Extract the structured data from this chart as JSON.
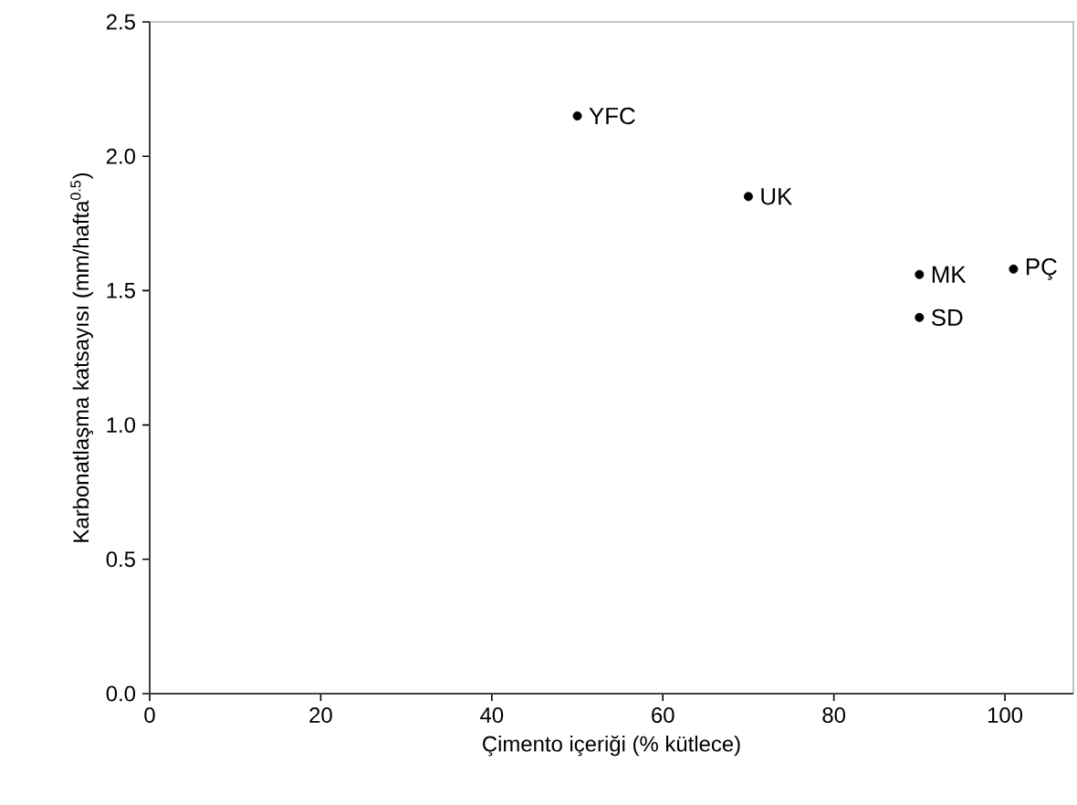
{
  "chart_data": {
    "type": "scatter",
    "xlabel": "Çimento içeriği (% kütlece)",
    "ylabel": "Karbonatlaşma katsayısı (mm/hafta$^{0.5}$)",
    "x": [
      50,
      70,
      90,
      90,
      101
    ],
    "series": [
      {
        "color": "#000000",
        "values": [
          2.15,
          1.85,
          1.56,
          1.4,
          1.58
        ]
      }
    ],
    "marker": "circle",
    "xlim": [
      0,
      108
    ],
    "ylim": [
      0,
      2.5
    ],
    "xticks": [
      0,
      20,
      40,
      60,
      80,
      100
    ],
    "yticks": [
      {
        "value": 0,
        "label": "0.0"
      },
      {
        "value": 0.5,
        "label": "0.5"
      },
      {
        "value": 1,
        "label": "1.0"
      },
      {
        "value": 1.5,
        "label": "1.5"
      },
      {
        "value": 2,
        "label": "2.0"
      },
      {
        "value": 2.5,
        "label": "2.5"
      }
    ],
    "grid": false,
    "annotations": [
      {
        "text": "YFC",
        "x": 50,
        "y": 2.15
      },
      {
        "text": "UK",
        "x": 70,
        "y": 1.85
      },
      {
        "text": "MK",
        "x": 90,
        "y": 1.56
      },
      {
        "text": "SD",
        "x": 90,
        "y": 1.4
      },
      {
        "text": "PÇ",
        "x": 101,
        "y": 1.58
      }
    ]
  }
}
